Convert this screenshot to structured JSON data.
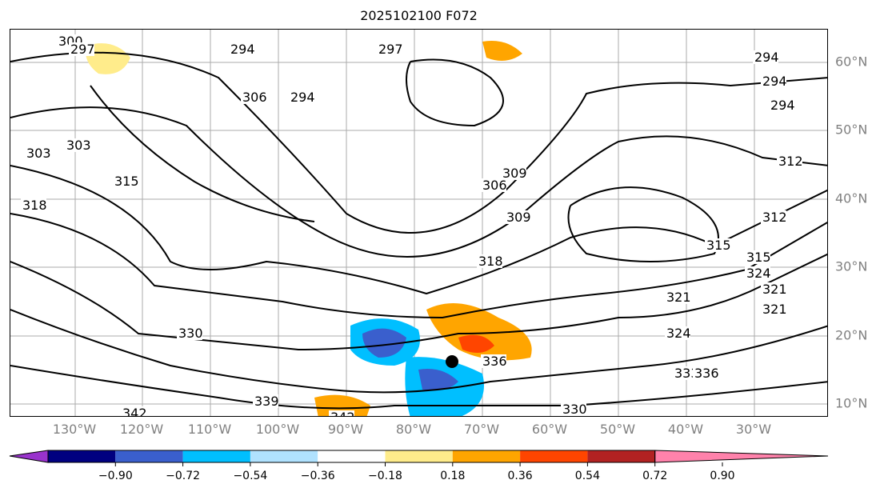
{
  "title": "2025102100 F072",
  "longitude_labels": [
    "130°W",
    "120°W",
    "110°W",
    "100°W",
    "90°W",
    "80°W",
    "70°W",
    "60°W",
    "50°W",
    "40°W",
    "30°W"
  ],
  "latitude_labels": [
    "60°N",
    "50°N",
    "40°N",
    "30°N",
    "20°N",
    "10°N"
  ],
  "contour_labels": [
    "300",
    "294",
    "297",
    "303",
    "306",
    "294",
    "294",
    "294",
    "294",
    "303",
    "297",
    "318",
    "315",
    "312",
    "309",
    "306",
    "309",
    "318",
    "315",
    "315",
    "312",
    "324",
    "321",
    "321",
    "324",
    "321",
    "330",
    "333",
    "336",
    "339",
    "342",
    "342",
    "330",
    "336"
  ],
  "colorbar": {
    "ticks": [
      "−0.90",
      "−0.72",
      "−0.54",
      "−0.36",
      "−0.18",
      "0.18",
      "0.36",
      "0.54",
      "0.72",
      "0.90"
    ],
    "colors": [
      "#9933cc",
      "#000080",
      "#3a5fcd",
      "#00bfff",
      "#b0e2ff",
      "#ffffff",
      "#ffec8b",
      "#ffa500",
      "#ff4500",
      "#b22222",
      "#ff82ab"
    ]
  }
}
